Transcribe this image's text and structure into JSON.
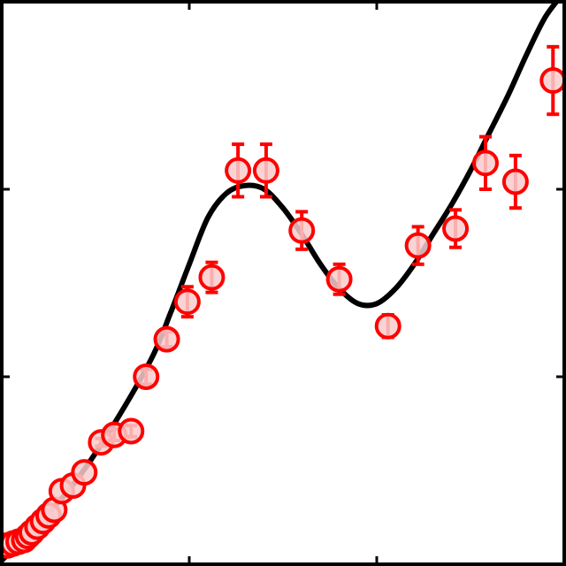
{
  "chart_data": {
    "type": "scatter",
    "title": "",
    "xlabel": "",
    "ylabel": "",
    "xlim": [
      0,
      3
    ],
    "ylim": [
      0,
      3
    ],
    "xticks": [
      1,
      2
    ],
    "yticks": [
      1,
      2
    ],
    "series": [
      {
        "name": "measurements",
        "kind": "points_with_error",
        "color": "#ff0000",
        "fill": "#f9cccc",
        "points": [
          {
            "x": 0.03,
            "y": 0.1,
            "err": 0
          },
          {
            "x": 0.06,
            "y": 0.11,
            "err": 0
          },
          {
            "x": 0.09,
            "y": 0.12,
            "err": 0
          },
          {
            "x": 0.12,
            "y": 0.13,
            "err": 0
          },
          {
            "x": 0.14,
            "y": 0.15,
            "err": 0
          },
          {
            "x": 0.16,
            "y": 0.17,
            "err": 0
          },
          {
            "x": 0.19,
            "y": 0.2,
            "err": 0
          },
          {
            "x": 0.22,
            "y": 0.23,
            "err": 0
          },
          {
            "x": 0.25,
            "y": 0.26,
            "err": 0
          },
          {
            "x": 0.28,
            "y": 0.29,
            "err": 0
          },
          {
            "x": 0.32,
            "y": 0.39,
            "err": 0
          },
          {
            "x": 0.38,
            "y": 0.42,
            "err": 0
          },
          {
            "x": 0.44,
            "y": 0.49,
            "err": 0
          },
          {
            "x": 0.53,
            "y": 0.65,
            "err": 0.02
          },
          {
            "x": 0.6,
            "y": 0.69,
            "err": 0.03
          },
          {
            "x": 0.69,
            "y": 0.71,
            "err": 0.03
          },
          {
            "x": 0.77,
            "y": 1.0,
            "err": 0.04
          },
          {
            "x": 0.88,
            "y": 1.2,
            "err": 0.04
          },
          {
            "x": 0.99,
            "y": 1.4,
            "err": 0.08
          },
          {
            "x": 1.12,
            "y": 1.53,
            "err": 0.08
          },
          {
            "x": 1.26,
            "y": 2.1,
            "err": 0.14
          },
          {
            "x": 1.41,
            "y": 2.1,
            "err": 0.14
          },
          {
            "x": 1.6,
            "y": 1.78,
            "err": 0.1
          },
          {
            "x": 1.8,
            "y": 1.52,
            "err": 0.08
          },
          {
            "x": 2.06,
            "y": 1.27,
            "err": 0.06
          },
          {
            "x": 2.22,
            "y": 1.7,
            "err": 0.1
          },
          {
            "x": 2.42,
            "y": 1.79,
            "err": 0.1
          },
          {
            "x": 2.58,
            "y": 2.14,
            "err": 0.14
          },
          {
            "x": 2.74,
            "y": 2.04,
            "err": 0.14
          },
          {
            "x": 2.94,
            "y": 2.58,
            "err": 0.18
          }
        ]
      },
      {
        "name": "model curve",
        "kind": "line",
        "color": "#000000",
        "x": [
          0.0,
          0.2,
          0.4,
          0.6,
          0.8,
          0.9,
          1.0,
          1.1,
          1.2,
          1.3,
          1.4,
          1.5,
          1.6,
          1.7,
          1.8,
          1.9,
          2.0,
          2.1,
          2.2,
          2.3,
          2.4,
          2.5,
          2.6,
          2.7,
          2.8,
          2.9,
          3.0
        ],
        "y": [
          0.02,
          0.22,
          0.45,
          0.75,
          1.1,
          1.34,
          1.6,
          1.85,
          1.98,
          2.02,
          2.0,
          1.9,
          1.76,
          1.6,
          1.47,
          1.39,
          1.39,
          1.47,
          1.6,
          1.76,
          1.92,
          2.1,
          2.3,
          2.5,
          2.72,
          2.92,
          3.05
        ]
      }
    ]
  }
}
